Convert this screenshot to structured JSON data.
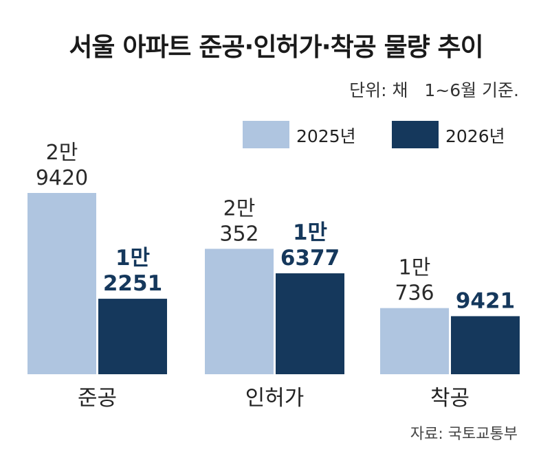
{
  "title": "서울 아파트 준공·인허가·착공 물량 추이",
  "unit_note": "단위: 채   1~6월 기준.",
  "source": "자료: 국토교통부",
  "colors": {
    "series_2025": "#afc5e0",
    "series_2026": "#15385c",
    "label_2026": "#15385c"
  },
  "chart_data": {
    "type": "bar",
    "categories": [
      "준공",
      "인허가",
      "착공"
    ],
    "series": [
      {
        "name": "2025년",
        "values": [
          29420,
          20352,
          10736
        ],
        "labels": [
          [
            "2만",
            "9420"
          ],
          [
            "2만",
            "352"
          ],
          [
            "1만",
            "736"
          ]
        ]
      },
      {
        "name": "2026년",
        "values": [
          12251,
          16377,
          9421
        ],
        "labels": [
          [
            "1만",
            "2251"
          ],
          [
            "1만",
            "6377"
          ],
          [
            "",
            "9421"
          ]
        ]
      }
    ],
    "ylim": [
      0,
      29420
    ],
    "legend": "top-right",
    "grid": false
  }
}
